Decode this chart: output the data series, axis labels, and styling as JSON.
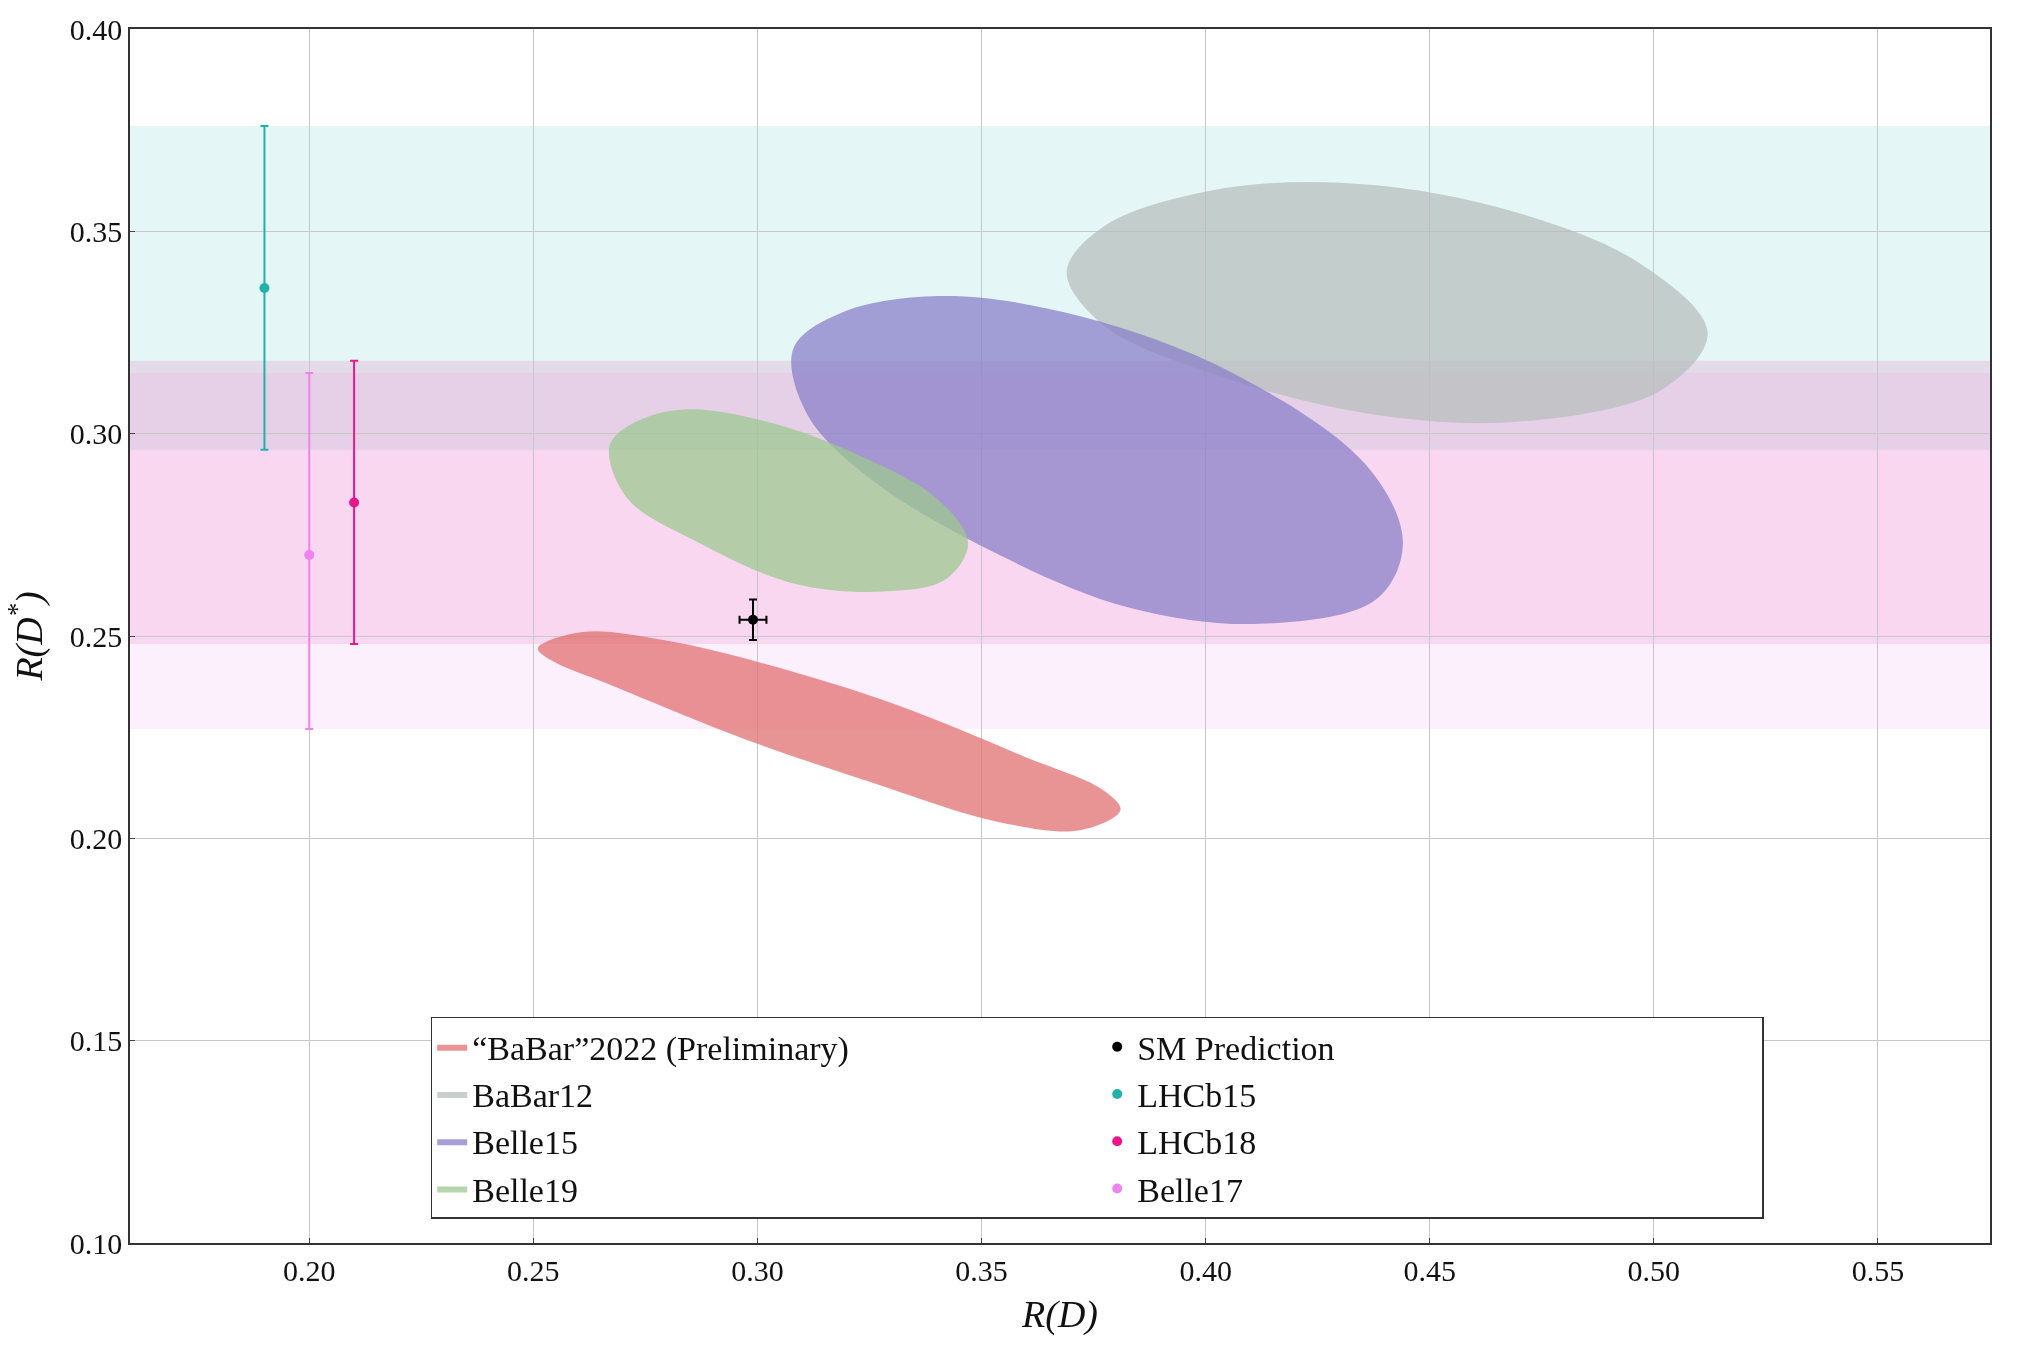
{
  "chart_data": {
    "type": "scatter",
    "xlabel": "R(D)",
    "ylabel": "R(D$^{*}$)",
    "xlim": [
      0.16,
      0.575
    ],
    "ylim": [
      0.1,
      0.4
    ],
    "xticks": [
      {
        "value": 0.2,
        "label": "0.20"
      },
      0.25,
      {
        "value": 0.3,
        "label": "0.30"
      },
      0.35,
      {
        "value": 0.4,
        "label": "0.40"
      },
      0.45,
      {
        "value": 0.5,
        "label": "0.50"
      },
      0.55
    ],
    "yticks": [
      {
        "value": 0.1,
        "label": "0.10"
      },
      0.15,
      {
        "value": 0.2,
        "label": "0.20"
      },
      0.25,
      {
        "value": 0.3,
        "label": "0.30"
      },
      0.35,
      {
        "value": 0.4,
        "label": "0.40"
      }
    ],
    "grid": true,
    "legend": "bottom",
    "bands": [
      {
        "axis": "y",
        "from": 0.296,
        "to": 0.376,
        "color": "#20b2aa"
      },
      {
        "axis": "y",
        "from": 0.248,
        "to": 0.318,
        "color": "#e8178a"
      },
      {
        "axis": "y",
        "from": 0.227,
        "to": 0.315,
        "color": "#ee82ee"
      }
    ],
    "series": [
      {
        "name": "“BaBar”2022 (Preliminary)",
        "type": "area",
        "color": "#e07070",
        "x": [
          0.251,
          0.261,
          0.279,
          0.302,
          0.331,
          0.36,
          0.377,
          0.381,
          0.372,
          0.354,
          0.325,
          0.296,
          0.267,
          0.254
        ],
        "values": [
          0.247,
          0.251,
          0.249,
          0.243,
          0.233,
          0.22,
          0.212,
          0.207,
          0.202,
          0.204,
          0.214,
          0.225,
          0.238,
          0.244
        ]
      },
      {
        "name": "SM Prediction",
        "marker": "circle",
        "color": "#000000",
        "x": [
          0.299
        ],
        "values": [
          0.254
        ],
        "errors": [
          0.005
        ],
        "xerrors": [
          0.003
        ]
      },
      {
        "name": "BaBar12",
        "type": "area",
        "color": "#b8bfbd",
        "x": [
          0.369,
          0.377,
          0.401,
          0.43,
          0.465,
          0.497,
          0.512,
          0.502,
          0.47,
          0.436,
          0.401,
          0.377
        ],
        "values": [
          0.34,
          0.351,
          0.36,
          0.362,
          0.356,
          0.342,
          0.325,
          0.311,
          0.303,
          0.305,
          0.315,
          0.327
        ]
      },
      {
        "name": "LHCb15",
        "marker": "circle",
        "color": "#20b2aa",
        "x": [
          0.19
        ],
        "values": [
          0.336
        ],
        "errors": [
          [
            0.296,
            0.376
          ]
        ]
      },
      {
        "name": "Belle15",
        "type": "area",
        "color": "#8a80c8",
        "x": [
          0.308,
          0.319,
          0.342,
          0.372,
          0.406,
          0.436,
          0.444,
          0.438,
          0.412,
          0.383,
          0.354,
          0.325,
          0.311
        ],
        "values": [
          0.321,
          0.33,
          0.334,
          0.329,
          0.315,
          0.292,
          0.273,
          0.259,
          0.253,
          0.257,
          0.27,
          0.289,
          0.305
        ]
      },
      {
        "name": "LHCb18",
        "marker": "circle",
        "color": "#e8178a",
        "x": [
          0.21
        ],
        "values": [
          0.283
        ],
        "errors": [
          [
            0.248,
            0.318
          ]
        ]
      },
      {
        "name": "Belle19",
        "type": "area",
        "color": "#9cc890",
        "x": [
          0.267,
          0.273,
          0.284,
          0.302,
          0.322,
          0.34,
          0.347,
          0.342,
          0.328,
          0.308,
          0.287,
          0.271
        ],
        "values": [
          0.297,
          0.303,
          0.306,
          0.303,
          0.295,
          0.284,
          0.273,
          0.264,
          0.261,
          0.263,
          0.273,
          0.284
        ]
      },
      {
        "name": "Belle17",
        "marker": "circle",
        "color": "#ee82ee",
        "x": [
          0.2
        ],
        "values": [
          0.27
        ],
        "errors": [
          [
            0.227,
            0.315
          ]
        ]
      }
    ]
  }
}
